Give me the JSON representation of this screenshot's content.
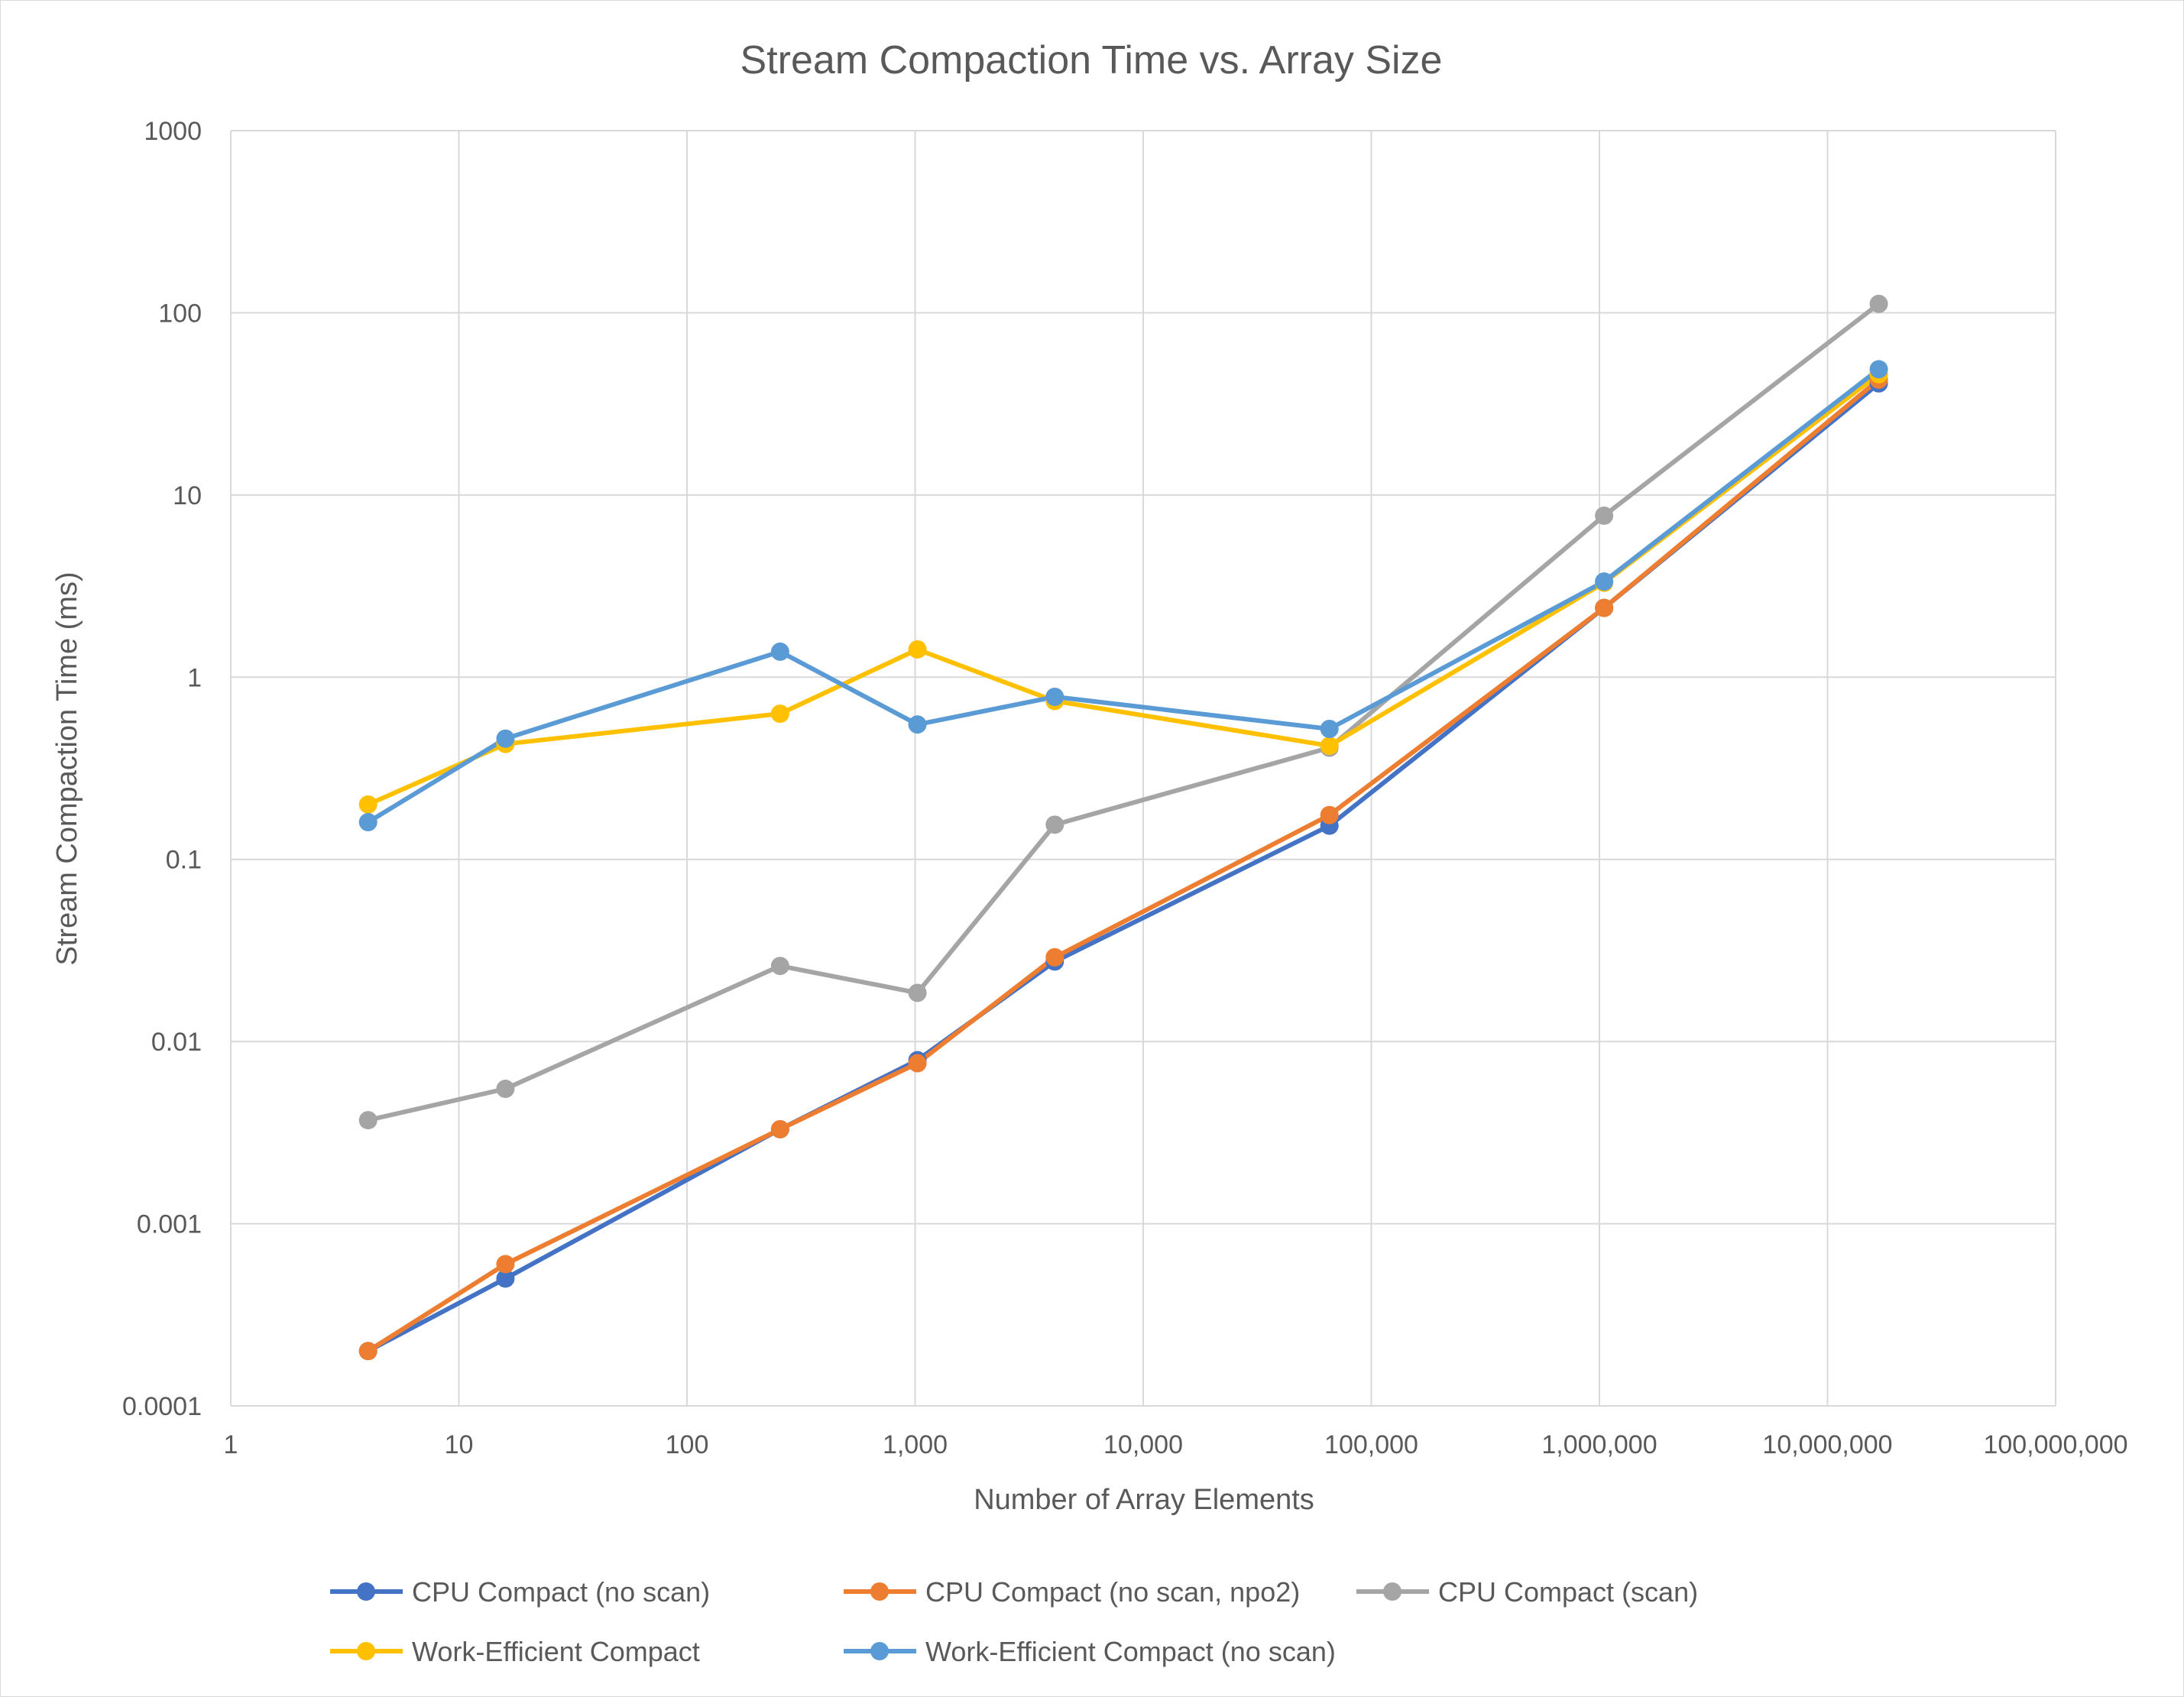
{
  "chart_data": {
    "type": "line",
    "title": "Stream Compaction Time vs. Array Size",
    "xlabel": "Number of Array Elements",
    "ylabel": "Stream Compaction Time (ms)",
    "x_scale": "log",
    "y_scale": "log",
    "xlim": [
      1,
      100000000
    ],
    "ylim": [
      0.0001,
      1000
    ],
    "grid": true,
    "legend_position": "bottom",
    "x_ticks": [
      1,
      10,
      100,
      1000,
      10000,
      100000,
      1000000,
      10000000,
      100000000
    ],
    "x_tick_labels": [
      "1",
      "10",
      "100",
      "1,000",
      "10,000",
      "100,000",
      "1,000,000",
      "10,000,000",
      "100,000,000"
    ],
    "y_ticks": [
      0.0001,
      0.001,
      0.01,
      0.1,
      1,
      10,
      100,
      1000
    ],
    "y_tick_labels": [
      "0.0001",
      "0.001",
      "0.01",
      "0.1",
      "1",
      "10",
      "100",
      "1000"
    ],
    "x": [
      4,
      16,
      256,
      1024,
      4096,
      65536,
      1048576,
      16777216
    ],
    "series": [
      {
        "name": "CPU Compact (no scan)",
        "color": "#4472c4",
        "values": [
          0.0002,
          0.0005,
          0.0033,
          0.0079,
          0.0275,
          0.153,
          2.4,
          41
        ]
      },
      {
        "name": "CPU Compact (no scan, npo2)",
        "color": "#ed7d31",
        "values": [
          0.0002,
          0.0006,
          0.0033,
          0.0076,
          0.029,
          0.175,
          2.4,
          43
        ]
      },
      {
        "name": "CPU Compact (scan)",
        "color": "#a5a5a5",
        "values": [
          0.0037,
          0.0055,
          0.026,
          0.0185,
          0.155,
          0.41,
          7.7,
          112
        ]
      },
      {
        "name": "Work-Efficient Compact",
        "color": "#ffc000",
        "values": [
          0.2,
          0.43,
          0.63,
          1.42,
          0.74,
          0.42,
          3.3,
          46
        ]
      },
      {
        "name": "Work-Efficient Compact (no scan)",
        "color": "#5b9bd5",
        "values": [
          0.16,
          0.46,
          1.38,
          0.55,
          0.78,
          0.52,
          3.35,
          49
        ]
      }
    ]
  }
}
